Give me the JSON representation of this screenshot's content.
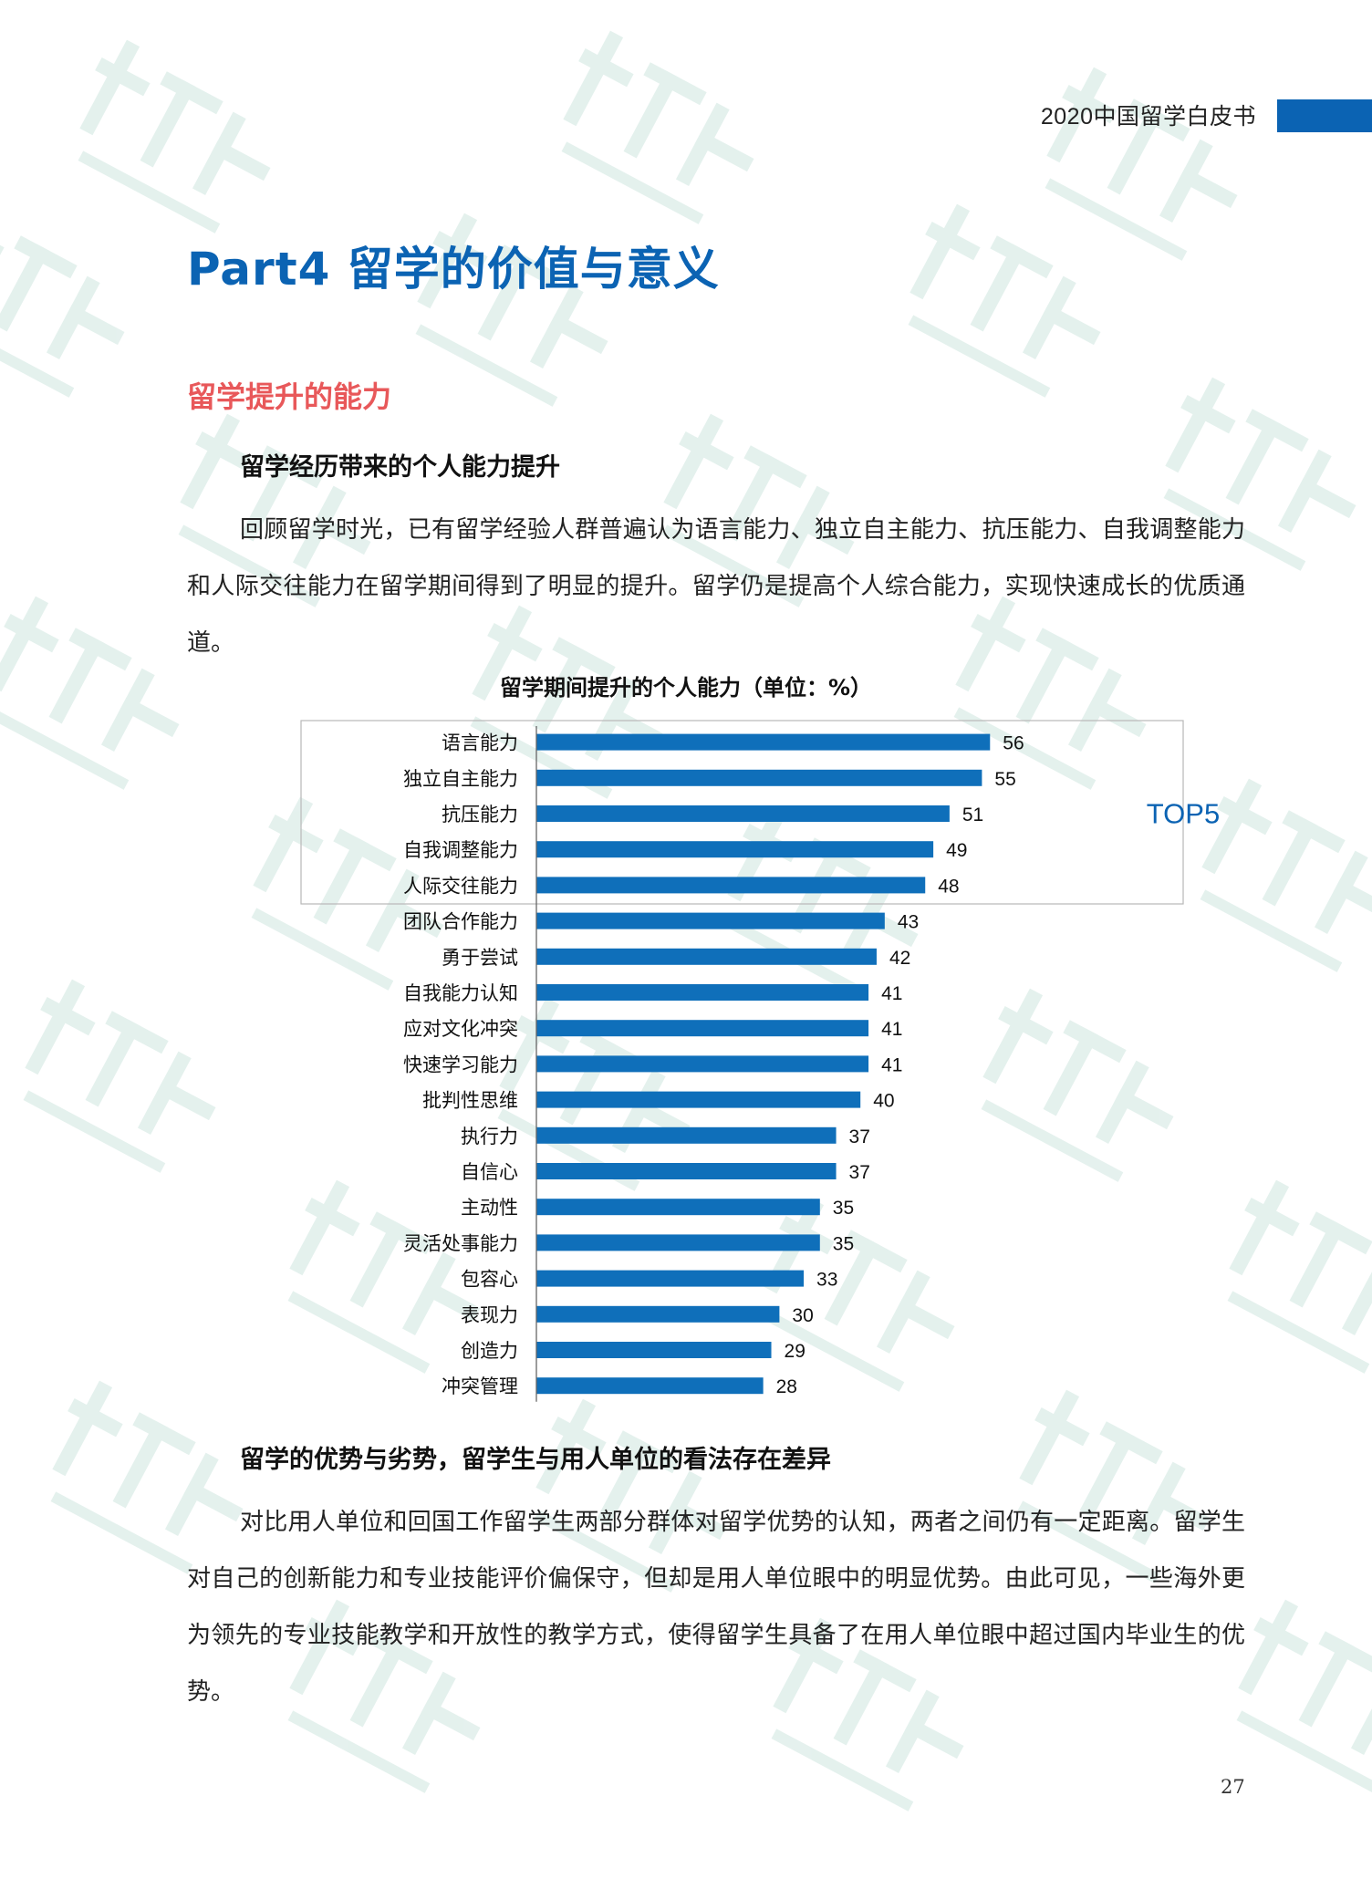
{
  "colors": {
    "brand_blue": "#0b63b3",
    "section_red": "#e8585a",
    "bar_blue": "#0f6fba",
    "watermark_green": "#cfe6e0"
  },
  "header": {
    "running_title": "2020中国留学白皮书"
  },
  "part_title": "Part4  留学的价值与意义",
  "section_title": "留学提升的能力",
  "subsection1": {
    "title": "留学经历带来的个人能力提升",
    "paragraph": "回顾留学时光，已有留学经验人群普遍认为语言能力、独立自主能力、抗压能力、自我调整能力和人际交往能力在留学期间得到了明显的提升。留学仍是提高个人综合能力，实现快速成长的优质通道。"
  },
  "chart_data": {
    "type": "bar",
    "orientation": "horizontal",
    "title": "留学期间提升的个人能力（单位：%）",
    "categories": [
      "语言能力",
      "独立自主能力",
      "抗压能力",
      "自我调整能力",
      "人际交往能力",
      "团队合作能力",
      "勇于尝试",
      "自我能力认知",
      "应对文化冲突",
      "快速学习能力",
      "批判性思维",
      "执行力",
      "自信心",
      "主动性",
      "灵活处事能力",
      "包容心",
      "表现力",
      "创造力",
      "冲突管理"
    ],
    "values": [
      56,
      55,
      51,
      49,
      48,
      43,
      42,
      41,
      41,
      41,
      40,
      37,
      37,
      35,
      35,
      33,
      30,
      29,
      28
    ],
    "highlight": {
      "label": "TOP5",
      "count": 5
    },
    "xlabel": "",
    "ylabel": "",
    "grid": false,
    "legend": false
  },
  "subsection2": {
    "title": "留学的优势与劣势，留学生与用人单位的看法存在差异",
    "paragraph": "对比用人单位和回国工作留学生两部分群体对留学优势的认知，两者之间仍有一定距离。留学生对自己的创新能力和专业技能评价偏保守，但却是用人单位眼中的明显优势。由此可见，一些海外更为领先的专业技能教学和开放性的教学方式，使得留学生具备了在用人单位眼中超过国内毕业生的优势。"
  },
  "page_number": "27"
}
